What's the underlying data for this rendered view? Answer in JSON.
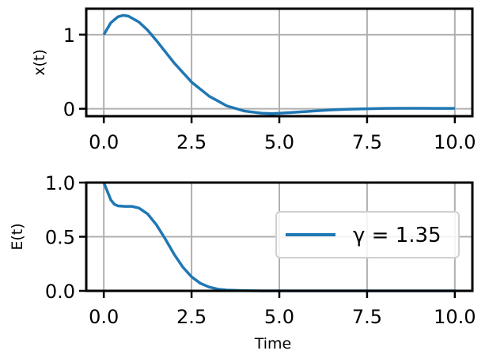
{
  "chart_data": [
    {
      "type": "line",
      "title": "",
      "xlabel": "",
      "ylabel": "x(t)",
      "xlim": [
        -0.5,
        10.5
      ],
      "ylim": [
        -0.1,
        1.35
      ],
      "xticks": [
        0.0,
        2.5,
        5.0,
        7.5,
        10.0
      ],
      "xtick_labels": [
        "0.0",
        "2.5",
        "5.0",
        "7.5",
        "10.0"
      ],
      "yticks": [
        0,
        1
      ],
      "ytick_labels": [
        "0",
        "1"
      ],
      "grid": true,
      "series": [
        {
          "color": "#1f77b4",
          "x": [
            0,
            0.2,
            0.4,
            0.55,
            0.7,
            1.0,
            1.25,
            1.5,
            2.0,
            2.5,
            3.0,
            3.5,
            4.0,
            4.5,
            4.8,
            5.0,
            5.5,
            6.0,
            6.5,
            7.0,
            7.5,
            8.0,
            8.5,
            9.0,
            9.5,
            10.0
          ],
          "y": [
            1.0,
            1.16,
            1.24,
            1.26,
            1.25,
            1.17,
            1.06,
            0.92,
            0.62,
            0.36,
            0.17,
            0.04,
            -0.03,
            -0.06,
            -0.065,
            -0.06,
            -0.045,
            -0.03,
            -0.015,
            -0.005,
            0.0,
            0.005,
            0.006,
            0.006,
            0.005,
            0.005
          ]
        }
      ]
    },
    {
      "type": "line",
      "title": "",
      "xlabel": "Time",
      "ylabel": "E(t)",
      "xlim": [
        -0.5,
        10.5
      ],
      "ylim": [
        0.0,
        1.0
      ],
      "xticks": [
        0.0,
        2.5,
        5.0,
        7.5,
        10.0
      ],
      "xtick_labels": [
        "0.0",
        "2.5",
        "5.0",
        "7.5",
        "10.0"
      ],
      "yticks": [
        0.0,
        0.5,
        1.0
      ],
      "ytick_labels": [
        "0.0",
        "0.5",
        "1.0"
      ],
      "grid": true,
      "legend": {
        "position": "right",
        "entries": [
          "γ = 1.35"
        ]
      },
      "series": [
        {
          "name": "γ = 1.35",
          "color": "#1f77b4",
          "x": [
            0,
            0.1,
            0.2,
            0.3,
            0.4,
            0.6,
            0.8,
            1.0,
            1.25,
            1.5,
            1.75,
            2.0,
            2.25,
            2.5,
            2.75,
            3.0,
            3.25,
            3.5,
            4.0,
            4.5,
            5.0,
            6.0,
            7.0,
            8.0,
            9.0,
            10.0
          ],
          "y": [
            1.0,
            0.92,
            0.84,
            0.8,
            0.785,
            0.78,
            0.78,
            0.765,
            0.71,
            0.61,
            0.48,
            0.34,
            0.22,
            0.13,
            0.07,
            0.035,
            0.016,
            0.007,
            0.002,
            0.0,
            0.0,
            0.0,
            0.0,
            0.0,
            0.0,
            0.0
          ]
        }
      ]
    }
  ]
}
